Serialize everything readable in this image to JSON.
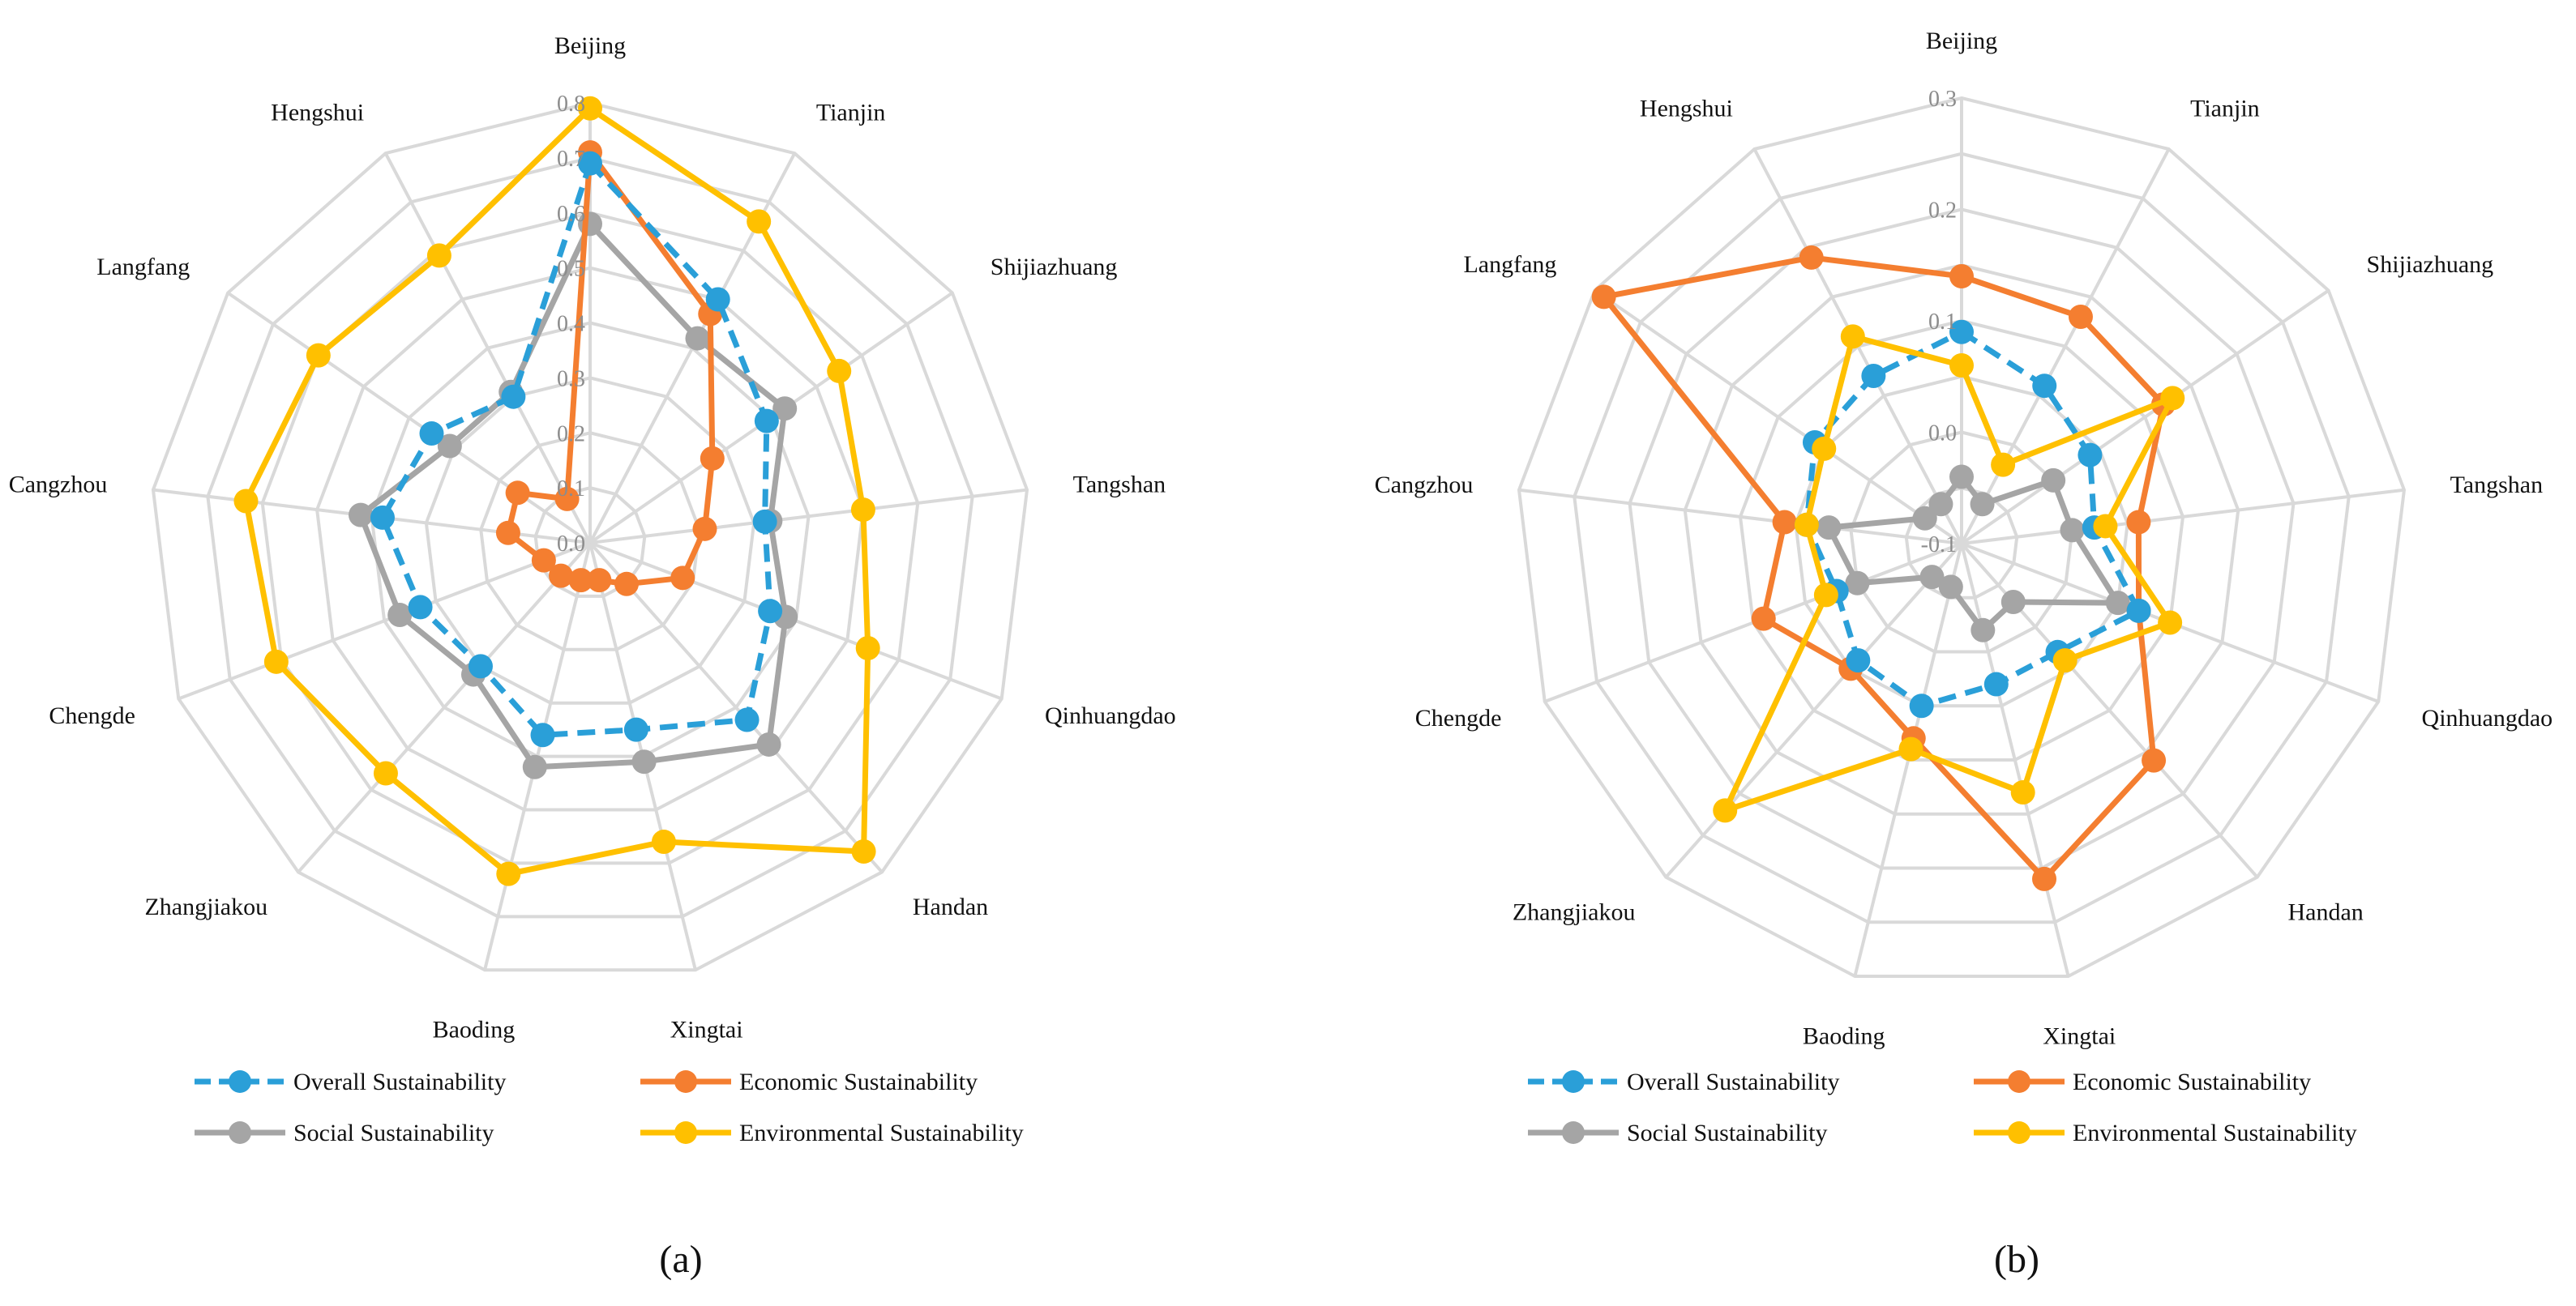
{
  "colors": {
    "overall": "#2A9FD8",
    "economic": "#F47E30",
    "social": "#A5A5A5",
    "environmental": "#FFC000",
    "grid": "#D9D9D9"
  },
  "legend": {
    "overall": "Overall Sustainability",
    "economic": "Economic Sustainability",
    "social": "Social Sustainability",
    "environmental": "Environmental Sustainability"
  },
  "chart_data": [
    {
      "type": "radar",
      "panel_label": "(a)",
      "categories": [
        "Beijing",
        "Tianjin",
        "Shijiazhuang",
        "Tangshan",
        "Qinhuangdao",
        "Handan",
        "Xingtai",
        "Baoding",
        "Zhangjiakou",
        "Chengde",
        "Cangzhou",
        "Langfang",
        "Hengshui"
      ],
      "rlim": [
        0,
        0.8
      ],
      "ticks": [
        "0.0",
        "0.1",
        "0.2",
        "0.3",
        "0.4",
        "0.5",
        "0.6",
        "0.7",
        "0.8"
      ],
      "series": [
        {
          "key": "overall",
          "name": "Overall Sustainability",
          "values": [
            0.69,
            0.5,
            0.39,
            0.32,
            0.35,
            0.43,
            0.35,
            0.36,
            0.3,
            0.33,
            0.38,
            0.35,
            0.3
          ]
        },
        {
          "key": "economic",
          "name": "Economic Sustainability",
          "values": [
            0.71,
            0.47,
            0.27,
            0.21,
            0.18,
            0.1,
            0.07,
            0.07,
            0.08,
            0.09,
            0.15,
            0.16,
            0.09
          ]
        },
        {
          "key": "social",
          "name": "Social Sustainability",
          "values": [
            0.58,
            0.42,
            0.43,
            0.33,
            0.38,
            0.49,
            0.41,
            0.42,
            0.32,
            0.37,
            0.42,
            0.31,
            0.31
          ]
        },
        {
          "key": "environmental",
          "name": "Environmental Sustainability",
          "values": [
            0.79,
            0.66,
            0.55,
            0.5,
            0.54,
            0.75,
            0.56,
            0.62,
            0.56,
            0.61,
            0.63,
            0.6,
            0.59
          ]
        }
      ]
    },
    {
      "type": "radar",
      "panel_label": "(b)",
      "categories": [
        "Beijing",
        "Tianjin",
        "Shijiazhuang",
        "Tangshan",
        "Qinhuangdao",
        "Handan",
        "Xingtai",
        "Baoding",
        "Zhangjiakou",
        "Chengde",
        "Cangzhou",
        "Langfang",
        "Hengshui"
      ],
      "rlim": [
        -0.1,
        0.3
      ],
      "ticks": [
        "-0.1",
        "0.0",
        "0.1",
        "0.2",
        "0.3"
      ],
      "series": [
        {
          "key": "overall",
          "name": "Overall Sustainability",
          "values": [
            0.09,
            0.06,
            0.04,
            0.02,
            0.07,
            0.03,
            0.03,
            0.05,
            0.04,
            0.02,
            0.04,
            0.06,
            0.07
          ]
        },
        {
          "key": "economic",
          "name": "Economic Sustainability",
          "values": [
            0.14,
            0.13,
            0.12,
            0.06,
            0.07,
            0.16,
            0.21,
            0.08,
            0.05,
            0.09,
            0.06,
            0.29,
            0.19
          ]
        },
        {
          "key": "social",
          "name": "Social Sustainability",
          "values": [
            -0.04,
            -0.06,
            0.0,
            0.0,
            0.05,
            -0.03,
            -0.02,
            -0.06,
            -0.06,
            0.0,
            0.02,
            -0.06,
            -0.06
          ]
        },
        {
          "key": "environmental",
          "name": "Environmental Sustainability",
          "values": [
            0.06,
            -0.02,
            0.13,
            0.03,
            0.1,
            0.04,
            0.13,
            0.09,
            0.22,
            0.03,
            0.04,
            0.05,
            0.11
          ]
        }
      ]
    }
  ]
}
